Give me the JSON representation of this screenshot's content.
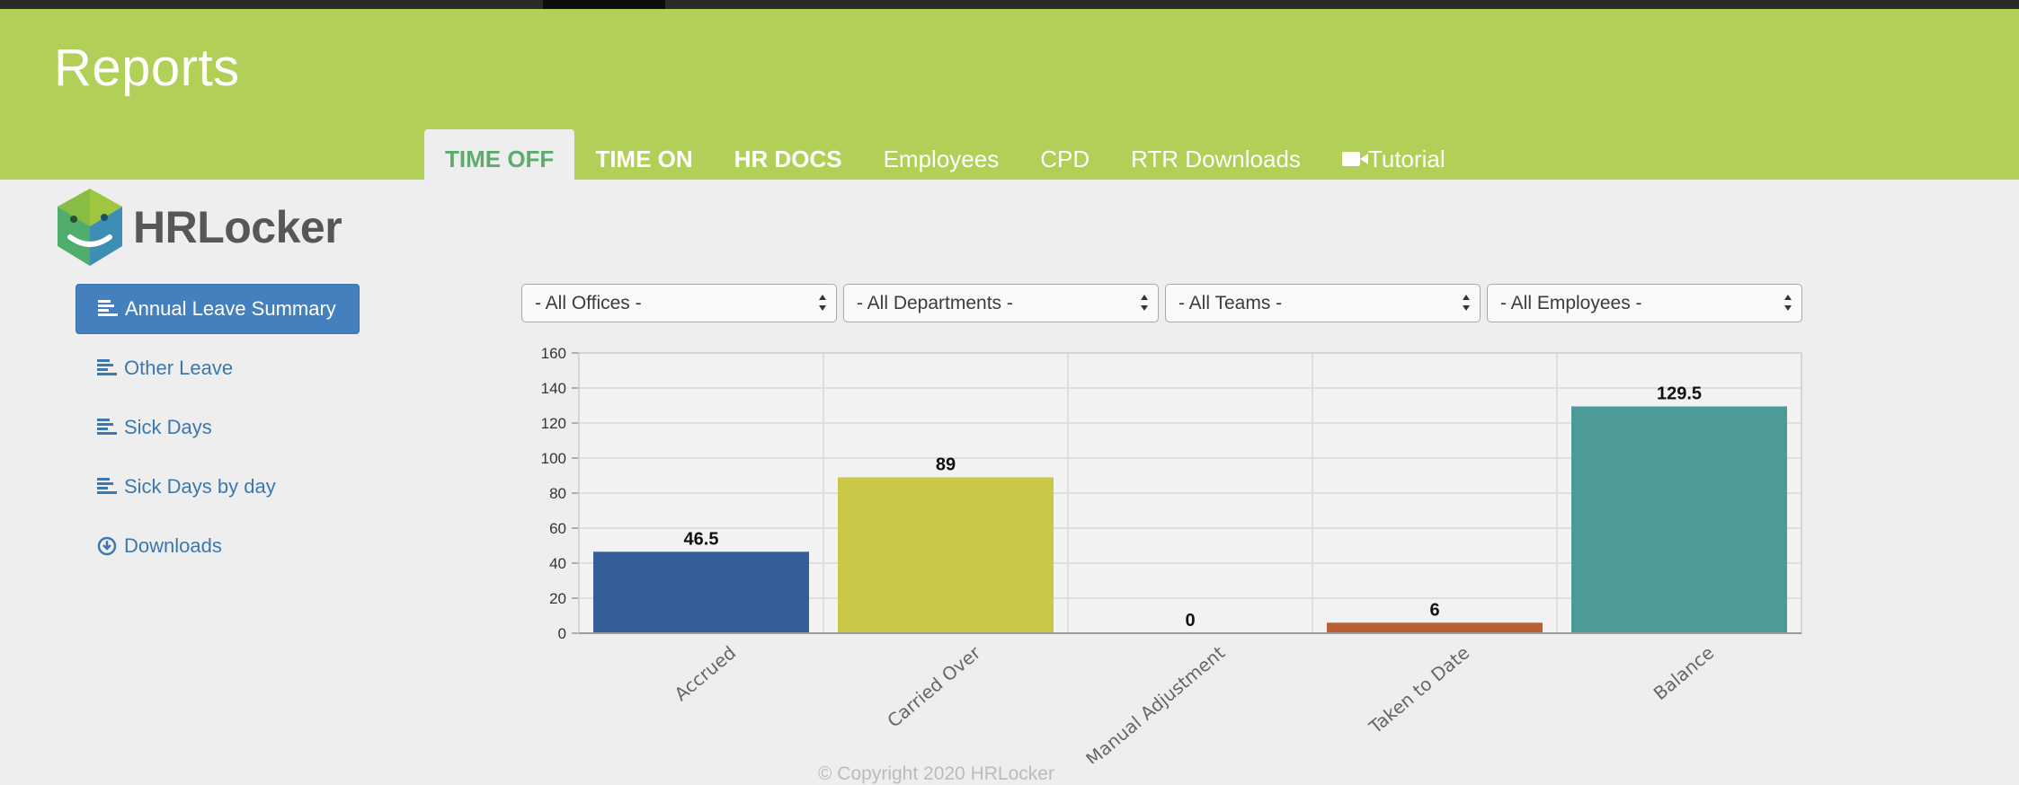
{
  "header": {
    "title": "Reports"
  },
  "tabs": [
    {
      "label": "TIME OFF",
      "active": true
    },
    {
      "label": "TIME ON"
    },
    {
      "label": "HR DOCS"
    },
    {
      "label": "Employees"
    },
    {
      "label": "CPD"
    },
    {
      "label": "RTR Downloads"
    },
    {
      "label": "Tutorial",
      "icon": "video-camera-icon"
    }
  ],
  "logo": {
    "text": "HRLocker",
    "icon": "hrlocker-cube-logo"
  },
  "sidebar": {
    "items": [
      {
        "label": "Annual Leave Summary",
        "icon": "list-icon",
        "active": true
      },
      {
        "label": "Other Leave",
        "icon": "list-icon"
      },
      {
        "label": "Sick Days",
        "icon": "list-icon"
      },
      {
        "label": "Sick Days by day",
        "icon": "list-icon"
      },
      {
        "label": "Downloads",
        "icon": "download-circle-icon"
      }
    ]
  },
  "filters": {
    "offices": "- All Offices -",
    "departments": "- All Departments -",
    "teams": "- All Teams -",
    "employees": "- All Employees -"
  },
  "footer": {
    "text": "© Copyright 2020 HRLocker"
  },
  "chart_data": {
    "type": "bar",
    "categories": [
      "Accrued",
      "Carried Over",
      "Manual Adjustment",
      "Taken to Date",
      "Balance"
    ],
    "values": [
      46.5,
      89,
      0,
      6,
      129.5
    ],
    "value_labels": [
      "46.5",
      "89",
      "0",
      "6",
      "129.5"
    ],
    "colors": [
      "#345d99",
      "#c9c748",
      "#7a7a7a",
      "#b95f33",
      "#4d9b97"
    ],
    "ylim": [
      0,
      160
    ],
    "yticks": [
      0,
      20,
      40,
      60,
      80,
      100,
      120,
      140,
      160
    ],
    "title": "",
    "xlabel": "",
    "ylabel": "",
    "grid": true
  }
}
